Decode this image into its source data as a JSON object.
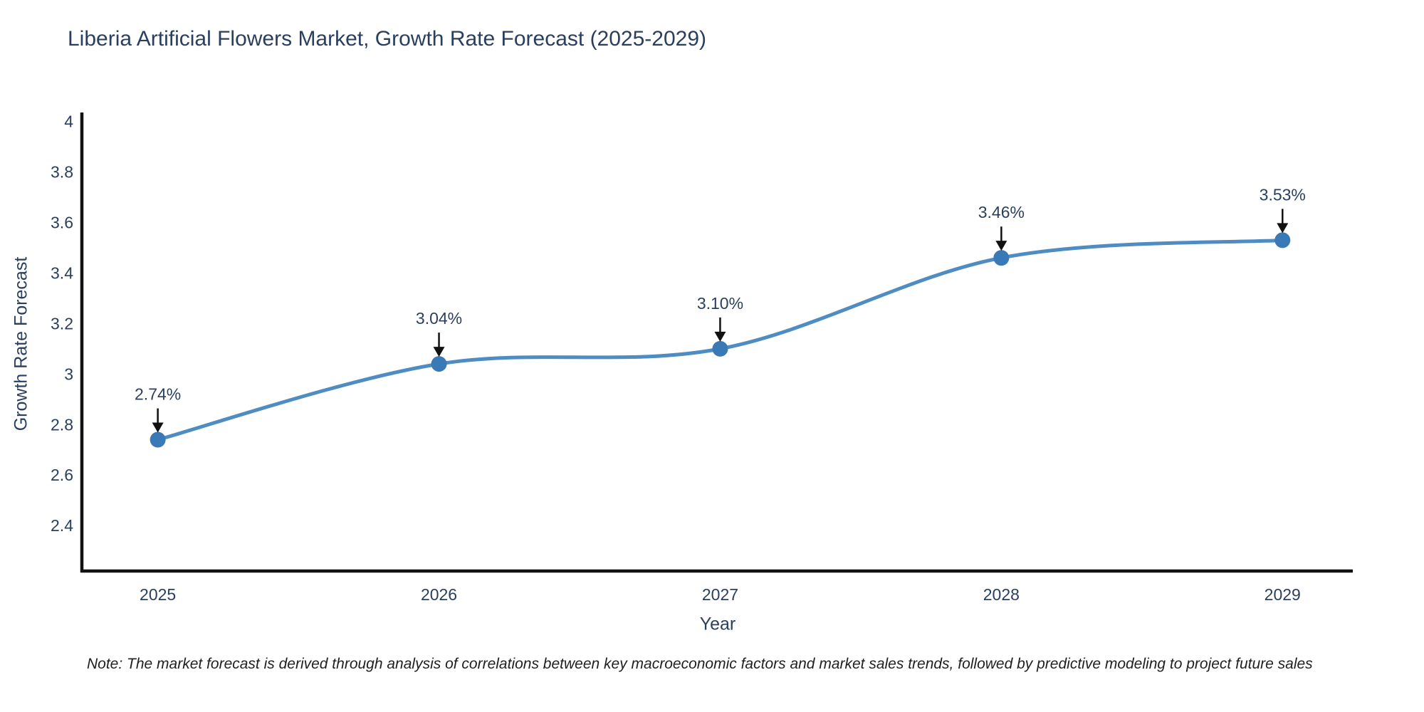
{
  "note": {
    "text": "Note: The market forecast is derived through analysis of correlations between key macroeconomic factors and market sales trends, followed by predictive modeling to project future sales"
  },
  "chart_data": {
    "type": "line",
    "title": "Liberia Artificial Flowers Market, Growth Rate Forecast (2025-2029)",
    "xlabel": "Year",
    "ylabel": "Growth Rate Forecast",
    "categories": [
      2025,
      2026,
      2027,
      2028,
      2029
    ],
    "values": [
      2.74,
      3.04,
      3.1,
      3.46,
      3.53
    ],
    "point_labels": [
      "2.74%",
      "3.04%",
      "3.10%",
      "3.46%",
      "3.53%"
    ],
    "line_shape": "spline",
    "grid": false,
    "legend": false,
    "xlim": [
      2024.73,
      2029.25
    ],
    "ylim": [
      2.22,
      4.03
    ],
    "yticks": [
      2.4,
      2.6,
      2.8,
      3,
      3.2,
      3.4,
      3.6,
      3.8,
      4
    ],
    "colors": {
      "line": "#4e8cc2",
      "marker": "#3879b6",
      "arrow": "#111111",
      "axis": "#111111",
      "tick_text": "#2a3f5f",
      "label_text": "#2a3f5f"
    }
  }
}
